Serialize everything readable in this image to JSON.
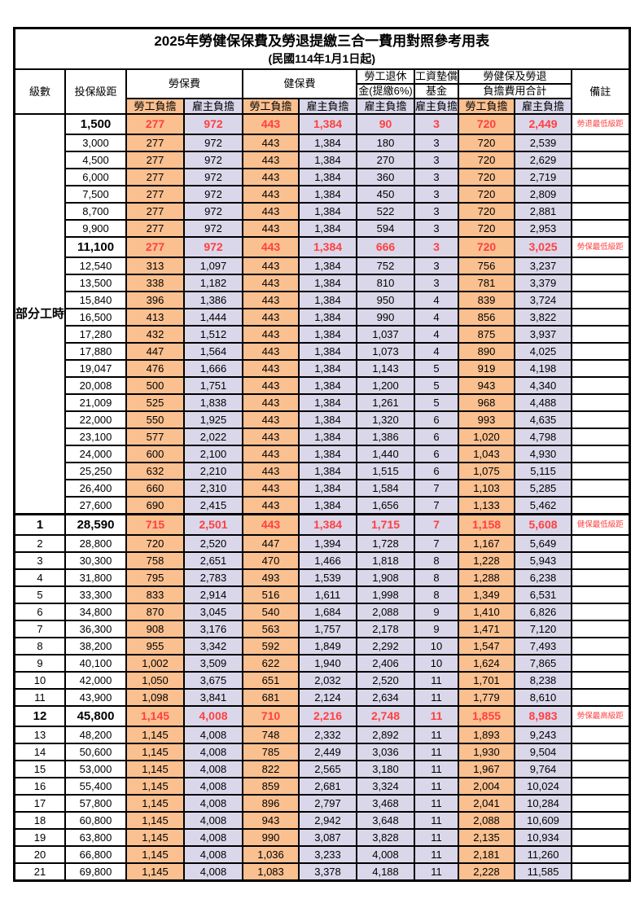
{
  "title": "2025年勞健保保費及勞退提繳三合一費用對照參考用表",
  "subtitle": "(民國114年1月1日起)",
  "colors": {
    "employee_burden_bg": "#FAC090",
    "employer_burden_bg": "#DBD7EA",
    "highlight_text": "#FF4040",
    "border": "#000000"
  },
  "header": {
    "level": "級數",
    "bracket": "投保級距",
    "labor": "勞保費",
    "health": "健保費",
    "pension_l1": "勞工退休",
    "pension_l2": "金(提繳6%)",
    "fund_l1": "工資墊償",
    "fund_l2": "基金",
    "total_l1": "勞健保及勞退",
    "total_l2": "負擔費用合計",
    "remark": "備註",
    "employee": "勞工負擔",
    "employer": "雇主負擔"
  },
  "part_time_label": "部分工時",
  "rows": [
    {
      "level": null,
      "bracket": "1,500",
      "labor_emp": "277",
      "labor_er": "972",
      "health_emp": "443",
      "health_er": "1,384",
      "pension_er": "90",
      "fund_er": "3",
      "total_emp": "720",
      "total_er": "2,449",
      "remark": "勞退最低級距",
      "highlight": true
    },
    {
      "level": null,
      "bracket": "3,000",
      "labor_emp": "277",
      "labor_er": "972",
      "health_emp": "443",
      "health_er": "1,384",
      "pension_er": "180",
      "fund_er": "3",
      "total_emp": "720",
      "total_er": "2,539"
    },
    {
      "level": null,
      "bracket": "4,500",
      "labor_emp": "277",
      "labor_er": "972",
      "health_emp": "443",
      "health_er": "1,384",
      "pension_er": "270",
      "fund_er": "3",
      "total_emp": "720",
      "total_er": "2,629"
    },
    {
      "level": null,
      "bracket": "6,000",
      "labor_emp": "277",
      "labor_er": "972",
      "health_emp": "443",
      "health_er": "1,384",
      "pension_er": "360",
      "fund_er": "3",
      "total_emp": "720",
      "total_er": "2,719"
    },
    {
      "level": null,
      "bracket": "7,500",
      "labor_emp": "277",
      "labor_er": "972",
      "health_emp": "443",
      "health_er": "1,384",
      "pension_er": "450",
      "fund_er": "3",
      "total_emp": "720",
      "total_er": "2,809"
    },
    {
      "level": null,
      "bracket": "8,700",
      "labor_emp": "277",
      "labor_er": "972",
      "health_emp": "443",
      "health_er": "1,384",
      "pension_er": "522",
      "fund_er": "3",
      "total_emp": "720",
      "total_er": "2,881"
    },
    {
      "level": null,
      "bracket": "9,900",
      "labor_emp": "277",
      "labor_er": "972",
      "health_emp": "443",
      "health_er": "1,384",
      "pension_er": "594",
      "fund_er": "3",
      "total_emp": "720",
      "total_er": "2,953"
    },
    {
      "level": null,
      "bracket": "11,100",
      "labor_emp": "277",
      "labor_er": "972",
      "health_emp": "443",
      "health_er": "1,384",
      "pension_er": "666",
      "fund_er": "3",
      "total_emp": "720",
      "total_er": "3,025",
      "remark": "勞保最低級距",
      "highlight": true
    },
    {
      "level": null,
      "bracket": "12,540",
      "labor_emp": "313",
      "labor_er": "1,097",
      "health_emp": "443",
      "health_er": "1,384",
      "pension_er": "752",
      "fund_er": "3",
      "total_emp": "756",
      "total_er": "3,237"
    },
    {
      "level": null,
      "bracket": "13,500",
      "labor_emp": "338",
      "labor_er": "1,182",
      "health_emp": "443",
      "health_er": "1,384",
      "pension_er": "810",
      "fund_er": "3",
      "total_emp": "781",
      "total_er": "3,379"
    },
    {
      "level": null,
      "bracket": "15,840",
      "labor_emp": "396",
      "labor_er": "1,386",
      "health_emp": "443",
      "health_er": "1,384",
      "pension_er": "950",
      "fund_er": "4",
      "total_emp": "839",
      "total_er": "3,724"
    },
    {
      "level": null,
      "bracket": "16,500",
      "labor_emp": "413",
      "labor_er": "1,444",
      "health_emp": "443",
      "health_er": "1,384",
      "pension_er": "990",
      "fund_er": "4",
      "total_emp": "856",
      "total_er": "3,822"
    },
    {
      "level": null,
      "bracket": "17,280",
      "labor_emp": "432",
      "labor_er": "1,512",
      "health_emp": "443",
      "health_er": "1,384",
      "pension_er": "1,037",
      "fund_er": "4",
      "total_emp": "875",
      "total_er": "3,937"
    },
    {
      "level": null,
      "bracket": "17,880",
      "labor_emp": "447",
      "labor_er": "1,564",
      "health_emp": "443",
      "health_er": "1,384",
      "pension_er": "1,073",
      "fund_er": "4",
      "total_emp": "890",
      "total_er": "4,025"
    },
    {
      "level": null,
      "bracket": "19,047",
      "labor_emp": "476",
      "labor_er": "1,666",
      "health_emp": "443",
      "health_er": "1,384",
      "pension_er": "1,143",
      "fund_er": "5",
      "total_emp": "919",
      "total_er": "4,198"
    },
    {
      "level": null,
      "bracket": "20,008",
      "labor_emp": "500",
      "labor_er": "1,751",
      "health_emp": "443",
      "health_er": "1,384",
      "pension_er": "1,200",
      "fund_er": "5",
      "total_emp": "943",
      "total_er": "4,340"
    },
    {
      "level": null,
      "bracket": "21,009",
      "labor_emp": "525",
      "labor_er": "1,838",
      "health_emp": "443",
      "health_er": "1,384",
      "pension_er": "1,261",
      "fund_er": "5",
      "total_emp": "968",
      "total_er": "4,488"
    },
    {
      "level": null,
      "bracket": "22,000",
      "labor_emp": "550",
      "labor_er": "1,925",
      "health_emp": "443",
      "health_er": "1,384",
      "pension_er": "1,320",
      "fund_er": "6",
      "total_emp": "993",
      "total_er": "4,635"
    },
    {
      "level": null,
      "bracket": "23,100",
      "labor_emp": "577",
      "labor_er": "2,022",
      "health_emp": "443",
      "health_er": "1,384",
      "pension_er": "1,386",
      "fund_er": "6",
      "total_emp": "1,020",
      "total_er": "4,798"
    },
    {
      "level": null,
      "bracket": "24,000",
      "labor_emp": "600",
      "labor_er": "2,100",
      "health_emp": "443",
      "health_er": "1,384",
      "pension_er": "1,440",
      "fund_er": "6",
      "total_emp": "1,043",
      "total_er": "4,930"
    },
    {
      "level": null,
      "bracket": "25,250",
      "labor_emp": "632",
      "labor_er": "2,210",
      "health_emp": "443",
      "health_er": "1,384",
      "pension_er": "1,515",
      "fund_er": "6",
      "total_emp": "1,075",
      "total_er": "5,115"
    },
    {
      "level": null,
      "bracket": "26,400",
      "labor_emp": "660",
      "labor_er": "2,310",
      "health_emp": "443",
      "health_er": "1,384",
      "pension_er": "1,584",
      "fund_er": "7",
      "total_emp": "1,103",
      "total_er": "5,285"
    },
    {
      "level": null,
      "bracket": "27,600",
      "labor_emp": "690",
      "labor_er": "2,415",
      "health_emp": "443",
      "health_er": "1,384",
      "pension_er": "1,656",
      "fund_er": "7",
      "total_emp": "1,133",
      "total_er": "5,462"
    },
    {
      "level": "1",
      "bracket": "28,590",
      "labor_emp": "715",
      "labor_er": "2,501",
      "health_emp": "443",
      "health_er": "1,384",
      "pension_er": "1,715",
      "fund_er": "7",
      "total_emp": "1,158",
      "total_er": "5,608",
      "remark": "健保最低級距",
      "highlight": true,
      "section": true
    },
    {
      "level": "2",
      "bracket": "28,800",
      "labor_emp": "720",
      "labor_er": "2,520",
      "health_emp": "447",
      "health_er": "1,394",
      "pension_er": "1,728",
      "fund_er": "7",
      "total_emp": "1,167",
      "total_er": "5,649"
    },
    {
      "level": "3",
      "bracket": "30,300",
      "labor_emp": "758",
      "labor_er": "2,651",
      "health_emp": "470",
      "health_er": "1,466",
      "pension_er": "1,818",
      "fund_er": "8",
      "total_emp": "1,228",
      "total_er": "5,943"
    },
    {
      "level": "4",
      "bracket": "31,800",
      "labor_emp": "795",
      "labor_er": "2,783",
      "health_emp": "493",
      "health_er": "1,539",
      "pension_er": "1,908",
      "fund_er": "8",
      "total_emp": "1,288",
      "total_er": "6,238"
    },
    {
      "level": "5",
      "bracket": "33,300",
      "labor_emp": "833",
      "labor_er": "2,914",
      "health_emp": "516",
      "health_er": "1,611",
      "pension_er": "1,998",
      "fund_er": "8",
      "total_emp": "1,349",
      "total_er": "6,531"
    },
    {
      "level": "6",
      "bracket": "34,800",
      "labor_emp": "870",
      "labor_er": "3,045",
      "health_emp": "540",
      "health_er": "1,684",
      "pension_er": "2,088",
      "fund_er": "9",
      "total_emp": "1,410",
      "total_er": "6,826"
    },
    {
      "level": "7",
      "bracket": "36,300",
      "labor_emp": "908",
      "labor_er": "3,176",
      "health_emp": "563",
      "health_er": "1,757",
      "pension_er": "2,178",
      "fund_er": "9",
      "total_emp": "1,471",
      "total_er": "7,120"
    },
    {
      "level": "8",
      "bracket": "38,200",
      "labor_emp": "955",
      "labor_er": "3,342",
      "health_emp": "592",
      "health_er": "1,849",
      "pension_er": "2,292",
      "fund_er": "10",
      "total_emp": "1,547",
      "total_er": "7,493"
    },
    {
      "level": "9",
      "bracket": "40,100",
      "labor_emp": "1,002",
      "labor_er": "3,509",
      "health_emp": "622",
      "health_er": "1,940",
      "pension_er": "2,406",
      "fund_er": "10",
      "total_emp": "1,624",
      "total_er": "7,865"
    },
    {
      "level": "10",
      "bracket": "42,000",
      "labor_emp": "1,050",
      "labor_er": "3,675",
      "health_emp": "651",
      "health_er": "2,032",
      "pension_er": "2,520",
      "fund_er": "11",
      "total_emp": "1,701",
      "total_er": "8,238"
    },
    {
      "level": "11",
      "bracket": "43,900",
      "labor_emp": "1,098",
      "labor_er": "3,841",
      "health_emp": "681",
      "health_er": "2,124",
      "pension_er": "2,634",
      "fund_er": "11",
      "total_emp": "1,779",
      "total_er": "8,610"
    },
    {
      "level": "12",
      "bracket": "45,800",
      "labor_emp": "1,145",
      "labor_er": "4,008",
      "health_emp": "710",
      "health_er": "2,216",
      "pension_er": "2,748",
      "fund_er": "11",
      "total_emp": "1,855",
      "total_er": "8,983",
      "remark": "勞保最高級距",
      "highlight": true
    },
    {
      "level": "13",
      "bracket": "48,200",
      "labor_emp": "1,145",
      "labor_er": "4,008",
      "health_emp": "748",
      "health_er": "2,332",
      "pension_er": "2,892",
      "fund_er": "11",
      "total_emp": "1,893",
      "total_er": "9,243"
    },
    {
      "level": "14",
      "bracket": "50,600",
      "labor_emp": "1,145",
      "labor_er": "4,008",
      "health_emp": "785",
      "health_er": "2,449",
      "pension_er": "3,036",
      "fund_er": "11",
      "total_emp": "1,930",
      "total_er": "9,504"
    },
    {
      "level": "15",
      "bracket": "53,000",
      "labor_emp": "1,145",
      "labor_er": "4,008",
      "health_emp": "822",
      "health_er": "2,565",
      "pension_er": "3,180",
      "fund_er": "11",
      "total_emp": "1,967",
      "total_er": "9,764"
    },
    {
      "level": "16",
      "bracket": "55,400",
      "labor_emp": "1,145",
      "labor_er": "4,008",
      "health_emp": "859",
      "health_er": "2,681",
      "pension_er": "3,324",
      "fund_er": "11",
      "total_emp": "2,004",
      "total_er": "10,024"
    },
    {
      "level": "17",
      "bracket": "57,800",
      "labor_emp": "1,145",
      "labor_er": "4,008",
      "health_emp": "896",
      "health_er": "2,797",
      "pension_er": "3,468",
      "fund_er": "11",
      "total_emp": "2,041",
      "total_er": "10,284"
    },
    {
      "level": "18",
      "bracket": "60,800",
      "labor_emp": "1,145",
      "labor_er": "4,008",
      "health_emp": "943",
      "health_er": "2,942",
      "pension_er": "3,648",
      "fund_er": "11",
      "total_emp": "2,088",
      "total_er": "10,609"
    },
    {
      "level": "19",
      "bracket": "63,800",
      "labor_emp": "1,145",
      "labor_er": "4,008",
      "health_emp": "990",
      "health_er": "3,087",
      "pension_er": "3,828",
      "fund_er": "11",
      "total_emp": "2,135",
      "total_er": "10,934"
    },
    {
      "level": "20",
      "bracket": "66,800",
      "labor_emp": "1,145",
      "labor_er": "4,008",
      "health_emp": "1,036",
      "health_er": "3,233",
      "pension_er": "4,008",
      "fund_er": "11",
      "total_emp": "2,181",
      "total_er": "11,260"
    },
    {
      "level": "21",
      "bracket": "69,800",
      "labor_emp": "1,145",
      "labor_er": "4,008",
      "health_emp": "1,083",
      "health_er": "3,378",
      "pension_er": "4,188",
      "fund_er": "11",
      "total_emp": "2,228",
      "total_er": "11,585"
    }
  ]
}
